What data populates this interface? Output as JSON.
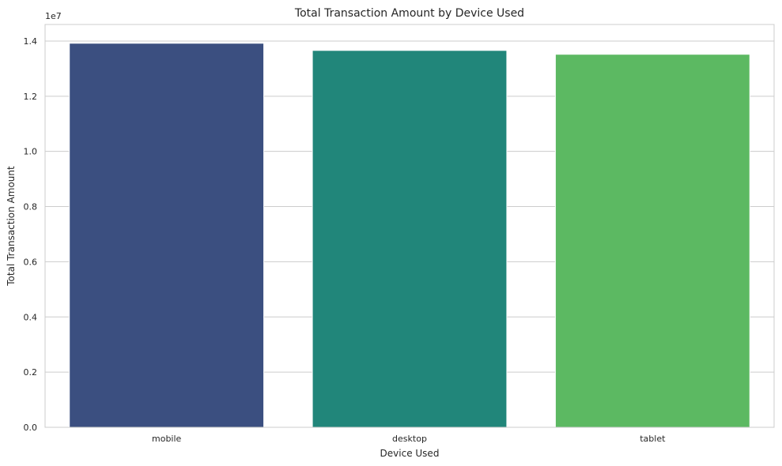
{
  "chart_data": {
    "type": "bar",
    "title": "Total Transaction Amount by Device Used",
    "xlabel": "Device Used",
    "ylabel": "Total Transaction Amount",
    "y_multiplier_label": "1e7",
    "categories": [
      "mobile",
      "desktop",
      "tablet"
    ],
    "values": [
      13920000,
      13660000,
      13520000
    ],
    "colors": [
      "#3b4f80",
      "#21867a",
      "#5cb962"
    ],
    "ylim": [
      0,
      14600000
    ],
    "yticks": [
      0,
      2000000,
      4000000,
      6000000,
      8000000,
      10000000,
      12000000,
      14000000
    ],
    "ytick_labels": [
      "0.0",
      "0.2",
      "0.4",
      "0.6",
      "0.8",
      "1.0",
      "1.2",
      "1.4"
    ],
    "grid": true,
    "grid_axis": "y",
    "legend": false
  }
}
